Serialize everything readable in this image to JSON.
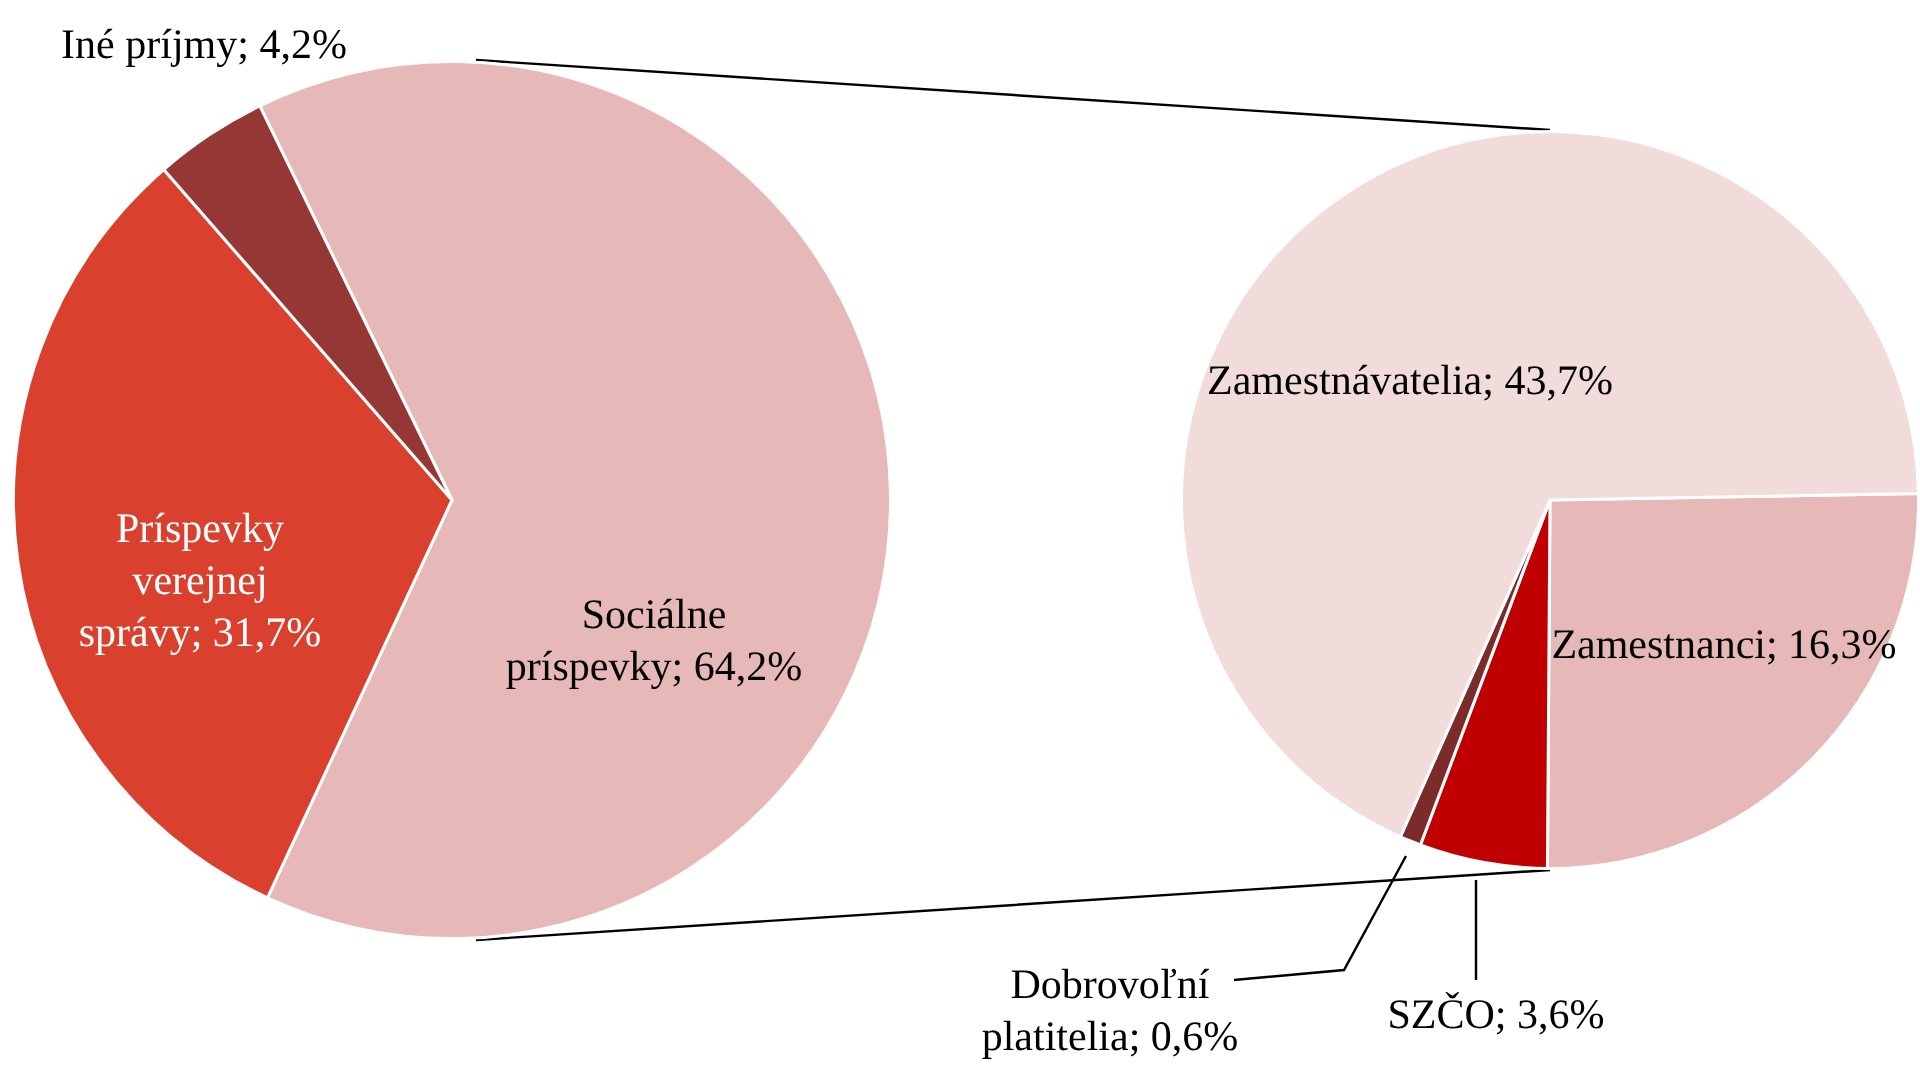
{
  "chart_data": [
    {
      "type": "pie",
      "categories": [
        "Sociálne príspevky",
        "Príspevky verejnej správy",
        "Iné príjmy"
      ],
      "values": [
        64.2,
        31.7,
        4.2
      ],
      "colors": [
        "#e6b8b7",
        "#d9412e",
        "#953735"
      ],
      "value_labels": [
        "64,2%",
        "31,7%",
        "4,2%"
      ]
    },
    {
      "type": "pie",
      "categories": [
        "Zamestnanci",
        "SZČO",
        "Dobrovoľní platitelia",
        "Zamestnávatelia"
      ],
      "values": [
        16.3,
        3.6,
        0.6,
        43.7
      ],
      "colors": [
        "#e6b8b7",
        "#c00000",
        "#7b2c2a",
        "#f2dcdb"
      ],
      "value_labels": [
        "16,3%",
        "3,6%",
        "0,6%",
        "43,7%"
      ]
    }
  ]
}
